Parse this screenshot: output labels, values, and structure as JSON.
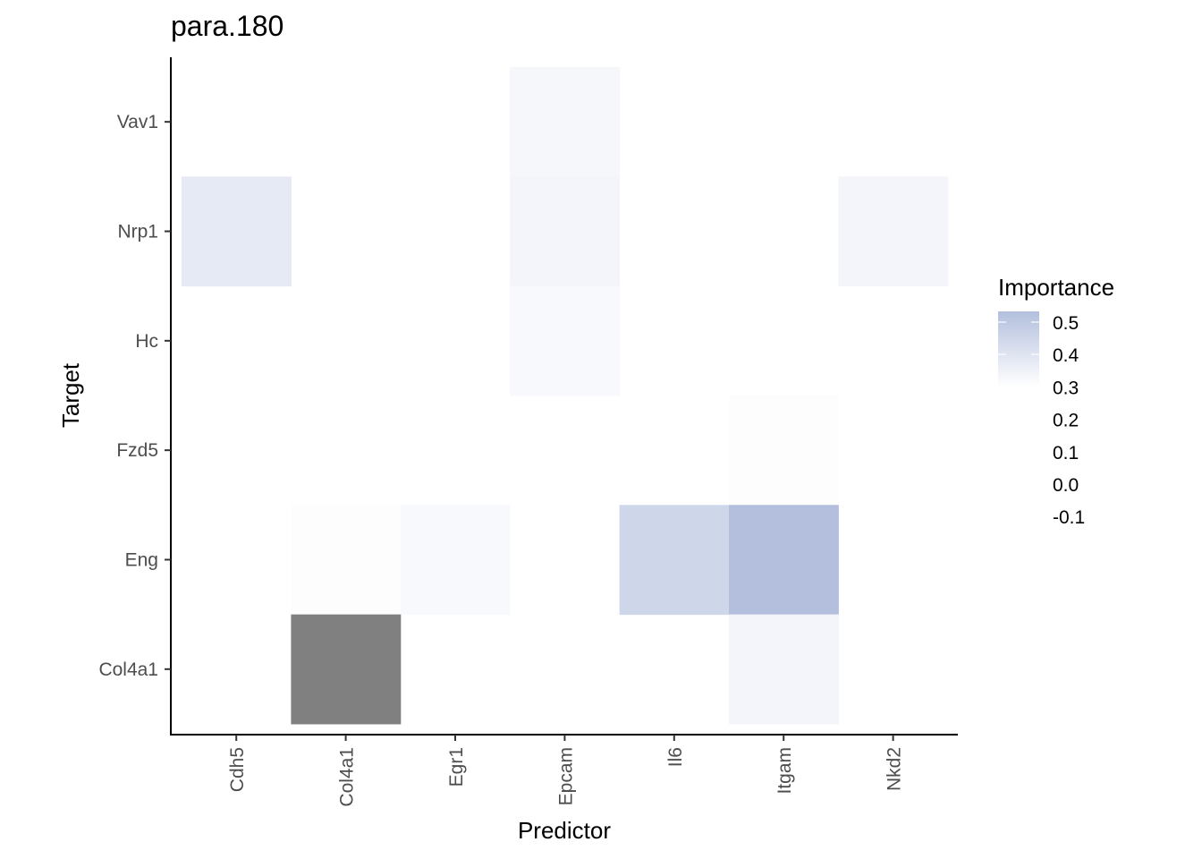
{
  "chart_data": {
    "type": "heatmap",
    "title": "para.180",
    "xlabel": "Predictor",
    "ylabel": "Target",
    "x_categories": [
      "Cdh5",
      "Col4a1",
      "Egr1",
      "Epcam",
      "Il6",
      "Itgam",
      "Nkd2"
    ],
    "y_categories": [
      "Vav1",
      "Nrp1",
      "Hc",
      "Fzd5",
      "Eng",
      "Col4a1"
    ],
    "cells": [
      {
        "x": "Epcam",
        "y": "Vav1",
        "value": 0.04
      },
      {
        "x": "Cdh5",
        "y": "Nrp1",
        "value": 0.1
      },
      {
        "x": "Epcam",
        "y": "Nrp1",
        "value": 0.05
      },
      {
        "x": "Nkd2",
        "y": "Nrp1",
        "value": 0.05
      },
      {
        "x": "Epcam",
        "y": "Hc",
        "value": 0.03
      },
      {
        "x": "Itgam",
        "y": "Fzd5",
        "value": 0.01
      },
      {
        "x": "Col4a1",
        "y": "Eng",
        "value": 0.01
      },
      {
        "x": "Egr1",
        "y": "Eng",
        "value": 0.03
      },
      {
        "x": "Il6",
        "y": "Eng",
        "value": 0.2
      },
      {
        "x": "Itgam",
        "y": "Eng",
        "value": 0.31
      },
      {
        "x": "Col4a1",
        "y": "Col4a1",
        "value": null
      },
      {
        "x": "Itgam",
        "y": "Col4a1",
        "value": 0.05
      }
    ],
    "legend": {
      "title": "Importance",
      "ticks": [
        "0.5",
        "0.4",
        "0.3",
        "0.2",
        "0.1",
        "0.0",
        "-0.1"
      ],
      "placement": "right"
    },
    "colors": {
      "low": "#ffffff",
      "high": "#b3bfdd",
      "na": "#808080"
    },
    "grid": false
  }
}
